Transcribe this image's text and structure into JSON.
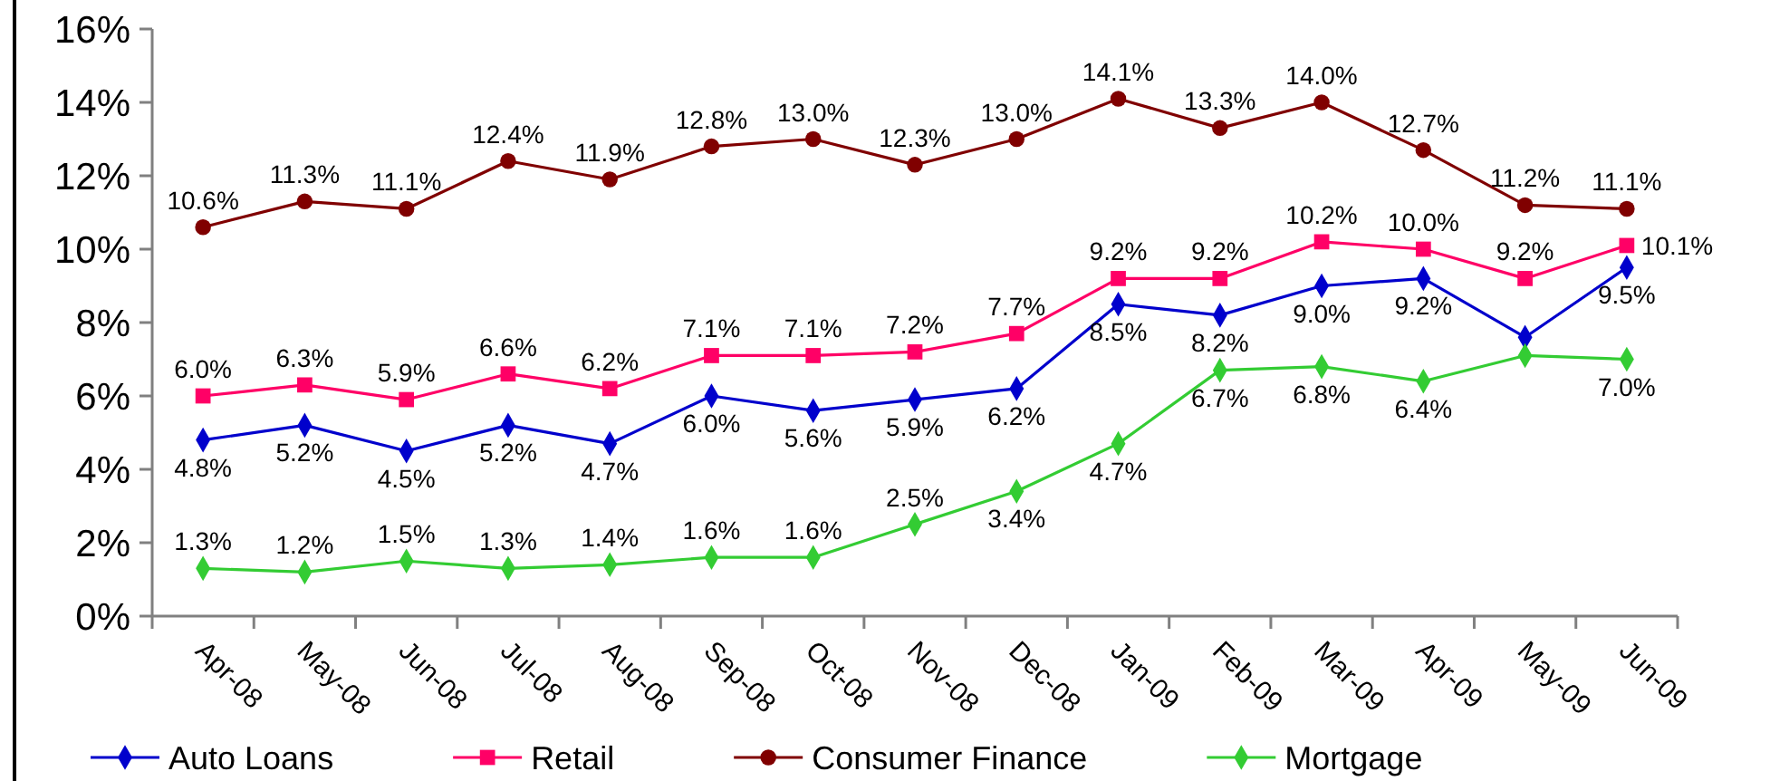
{
  "chart_data": {
    "type": "line",
    "categories": [
      "Apr-08",
      "May-08",
      "Jun-08",
      "Jul-08",
      "Aug-08",
      "Sep-08",
      "Oct-08",
      "Nov-08",
      "Dec-08",
      "Jan-09",
      "Feb-09",
      "Mar-09",
      "Apr-09",
      "May-09",
      "Jun-09"
    ],
    "ylim": [
      0,
      16
    ],
    "yticks": [
      {
        "value": 0,
        "label": "0%"
      },
      {
        "value": 2,
        "label": "2%"
      },
      {
        "value": 4,
        "label": "4%"
      },
      {
        "value": 6,
        "label": "6%"
      },
      {
        "value": 8,
        "label": "8%"
      },
      {
        "value": 10,
        "label": "10%"
      },
      {
        "value": 12,
        "label": "12%"
      },
      {
        "value": 14,
        "label": "14%"
      },
      {
        "value": 16,
        "label": "16%"
      }
    ],
    "legend": "bottom",
    "series": [
      {
        "name": "Auto Loans",
        "color": "#0000cc",
        "marker": "diamond",
        "values": [
          4.8,
          5.2,
          4.5,
          5.2,
          4.7,
          6.0,
          5.6,
          5.9,
          6.2,
          8.5,
          8.2,
          9.0,
          9.2,
          7.6,
          9.5
        ],
        "value_labels": [
          "4.8%",
          "5.2%",
          "4.5%",
          "5.2%",
          "4.7%",
          "6.0%",
          "5.6%",
          "5.9%",
          "6.2%",
          "8.5%",
          "8.2%",
          "9.0%",
          "9.2%",
          null,
          "9.5%"
        ]
      },
      {
        "name": "Retail",
        "color": "#ff0066",
        "marker": "square",
        "values": [
          6.0,
          6.3,
          5.9,
          6.6,
          6.2,
          7.1,
          7.1,
          7.2,
          7.7,
          9.2,
          9.2,
          10.2,
          10.0,
          9.2,
          10.1
        ],
        "value_labels": [
          "6.0%",
          "6.3%",
          "5.9%",
          "6.6%",
          "6.2%",
          "7.1%",
          "7.1%",
          "7.2%",
          "7.7%",
          "9.2%",
          "9.2%",
          "10.2%",
          "10.0%",
          "9.2%",
          "10.1%"
        ]
      },
      {
        "name": "Consumer Finance",
        "color": "#800000",
        "marker": "circle",
        "values": [
          10.6,
          11.3,
          11.1,
          12.4,
          11.9,
          12.8,
          13.0,
          12.3,
          13.0,
          14.1,
          13.3,
          14.0,
          12.7,
          11.2,
          11.1
        ],
        "value_labels": [
          "10.6%",
          "11.3%",
          "11.1%",
          "12.4%",
          "11.9%",
          "12.8%",
          "13.0%",
          "12.3%",
          "13.0%",
          "14.1%",
          "13.3%",
          "14.0%",
          "12.7%",
          "11.2%",
          "11.1%"
        ]
      },
      {
        "name": "Mortgage",
        "color": "#33cc33",
        "marker": "diamond",
        "values": [
          1.3,
          1.2,
          1.5,
          1.3,
          1.4,
          1.6,
          1.6,
          2.5,
          3.4,
          4.7,
          6.7,
          6.8,
          6.4,
          7.1,
          7.0
        ],
        "value_labels": [
          "1.3%",
          "1.2%",
          "1.5%",
          "1.3%",
          "1.4%",
          "1.6%",
          "1.6%",
          "2.5%",
          "3.4%",
          "4.7%",
          "6.7%",
          "6.8%",
          "6.4%",
          null,
          "7.0%"
        ]
      }
    ]
  }
}
